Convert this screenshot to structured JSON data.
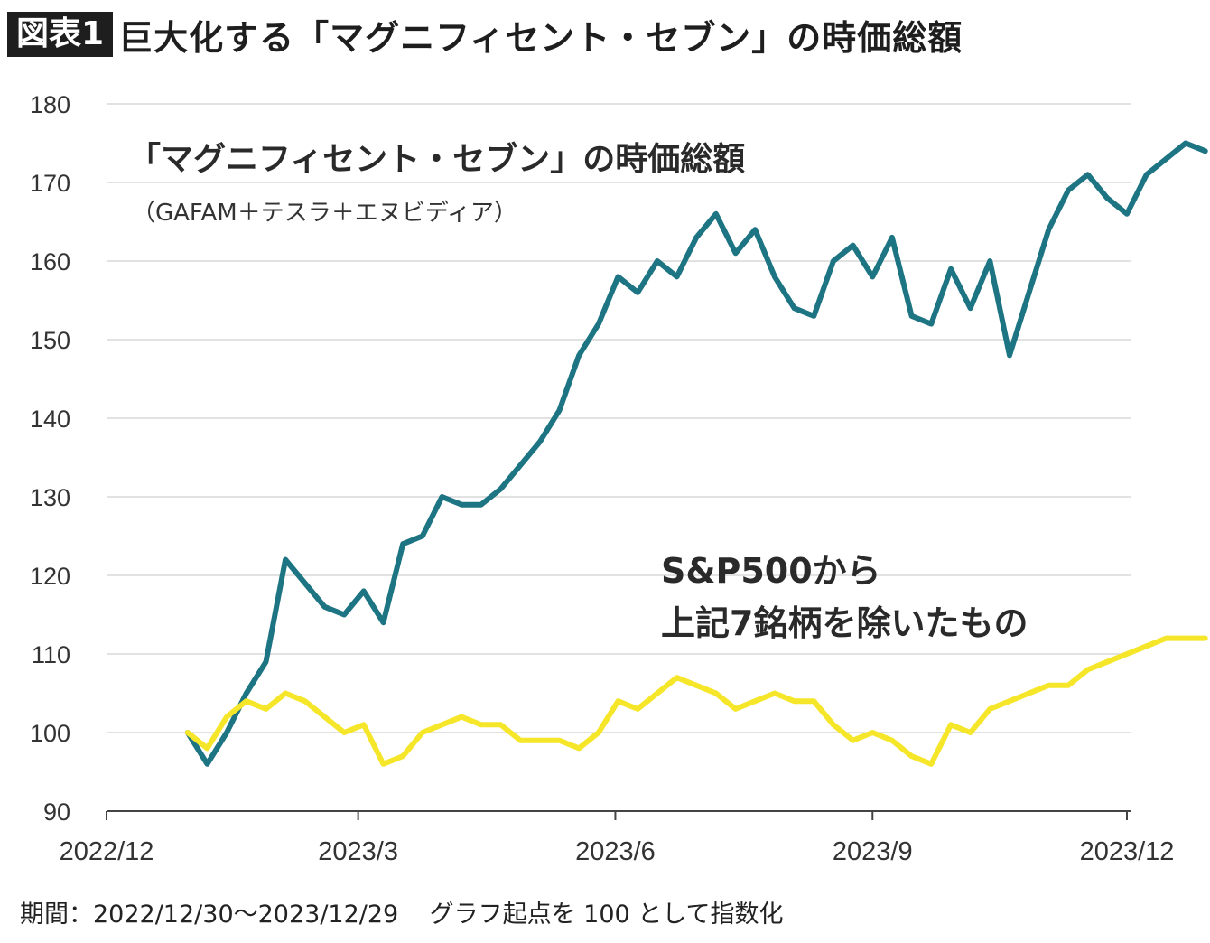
{
  "header": {
    "badge": "図表1",
    "title": "巨大化する「マグニフィセント・セブン」の時価総額"
  },
  "footer": {
    "period_label": "期間：2022/12/30〜2023/12/29",
    "note": "グラフ起点を 100 として指数化"
  },
  "colors": {
    "mag7": "#1d7482",
    "sp493": "#f5e62a",
    "grid": "#d9d9d9",
    "axis": "#444444"
  },
  "chart_data": {
    "type": "line",
    "ylim": [
      90,
      180
    ],
    "yticks": [
      90,
      100,
      110,
      120,
      130,
      140,
      150,
      160,
      170,
      180
    ],
    "xticks": [
      "2022/12",
      "2023/3",
      "2023/6",
      "2023/9",
      "2023/12"
    ],
    "grid": true,
    "annotations": {
      "mag7_label": "「マグニフィセント・セブン」の時価総額",
      "mag7_sublabel": "（GAFAM＋テスラ＋エヌビディア）",
      "sp_label_line1": "S&P500から",
      "sp_label_line2": "上記7銘柄を除いたもの"
    },
    "x": [
      "2022-12-30",
      "2023-01-06",
      "2023-01-13",
      "2023-01-20",
      "2023-01-27",
      "2023-02-03",
      "2023-02-10",
      "2023-02-17",
      "2023-02-24",
      "2023-03-03",
      "2023-03-10",
      "2023-03-17",
      "2023-03-24",
      "2023-03-31",
      "2023-04-07",
      "2023-04-14",
      "2023-04-21",
      "2023-04-28",
      "2023-05-05",
      "2023-05-12",
      "2023-05-19",
      "2023-05-26",
      "2023-06-02",
      "2023-06-09",
      "2023-06-16",
      "2023-06-23",
      "2023-06-30",
      "2023-07-07",
      "2023-07-14",
      "2023-07-21",
      "2023-07-28",
      "2023-08-04",
      "2023-08-11",
      "2023-08-18",
      "2023-08-25",
      "2023-09-01",
      "2023-09-08",
      "2023-09-15",
      "2023-09-22",
      "2023-09-29",
      "2023-10-06",
      "2023-10-13",
      "2023-10-20",
      "2023-10-27",
      "2023-11-03",
      "2023-11-10",
      "2023-11-17",
      "2023-11-24",
      "2023-12-01",
      "2023-12-08",
      "2023-12-15",
      "2023-12-22",
      "2023-12-29"
    ],
    "series": [
      {
        "name": "mag7",
        "values": [
          100,
          96,
          100,
          105,
          109,
          122,
          119,
          116,
          115,
          118,
          114,
          124,
          125,
          130,
          129,
          129,
          131,
          134,
          137,
          141,
          148,
          152,
          158,
          156,
          160,
          158,
          163,
          166,
          161,
          164,
          158,
          154,
          153,
          160,
          162,
          158,
          163,
          153,
          152,
          159,
          154,
          160,
          148,
          156,
          164,
          169,
          171,
          168,
          166,
          171,
          173,
          175,
          174
        ]
      },
      {
        "name": "sp493",
        "values": [
          100,
          98,
          102,
          104,
          103,
          105,
          104,
          102,
          100,
          101,
          96,
          97,
          100,
          101,
          102,
          101,
          101,
          99,
          99,
          99,
          98,
          100,
          104,
          103,
          105,
          107,
          106,
          105,
          103,
          104,
          105,
          104,
          104,
          101,
          99,
          100,
          99,
          97,
          96,
          101,
          100,
          103,
          104,
          105,
          106,
          106,
          108,
          109,
          110,
          111,
          112,
          112,
          112
        ]
      }
    ]
  }
}
